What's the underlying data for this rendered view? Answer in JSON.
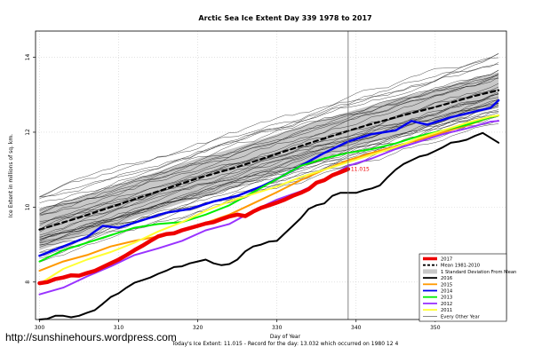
{
  "chart_data": {
    "type": "line",
    "title": "Arctic Sea Ice Extent Day 339 1978 to 2017",
    "xlabel": "Day of Year",
    "ylabel": "Ice Extent in millions of sq. km.",
    "xlim": [
      299.5,
      359
    ],
    "ylim": [
      7,
      14.7
    ],
    "x_ticks": [
      300,
      310,
      320,
      330,
      340,
      350
    ],
    "y_ticks": [
      8,
      10,
      12,
      14
    ],
    "grid": true,
    "vline_day": 339,
    "legend_position": "bottom-right",
    "annotation": "11.015",
    "footer": "Today's Ice Extent: 11.015  - Record for the day: 13.032 which occurred on 1980 12 4",
    "watermark": "http://sunshinehours.wordpress.com",
    "band": {
      "name": "1 Standard Deviation From Mean",
      "color": "#c8c8c8",
      "x": [
        300,
        305,
        310,
        315,
        320,
        325,
        330,
        335,
        340,
        345,
        350,
        355,
        358
      ],
      "upper": [
        9.95,
        10.25,
        10.6,
        10.95,
        11.3,
        11.6,
        11.95,
        12.3,
        12.6,
        12.9,
        13.15,
        13.45,
        13.6
      ],
      "lower": [
        8.85,
        9.2,
        9.55,
        9.9,
        10.25,
        10.55,
        10.9,
        11.25,
        11.6,
        11.9,
        12.2,
        12.5,
        12.65
      ]
    },
    "series": [
      {
        "name": "2017",
        "color": "#ee0000",
        "width": 4.5,
        "x": [
          300,
          301,
          302,
          303,
          304,
          305,
          306,
          307,
          308,
          309,
          310,
          311,
          312,
          313,
          314,
          315,
          316,
          317,
          318,
          319,
          320,
          321,
          322,
          323,
          324,
          325,
          326,
          327,
          328,
          329,
          330,
          331,
          332,
          333,
          334,
          335,
          336,
          337,
          338,
          339
        ],
        "values": [
          7.97,
          8.0,
          8.08,
          8.12,
          8.18,
          8.17,
          8.24,
          8.3,
          8.4,
          8.5,
          8.6,
          8.72,
          8.85,
          8.97,
          9.1,
          9.22,
          9.28,
          9.3,
          9.38,
          9.44,
          9.5,
          9.56,
          9.6,
          9.68,
          9.75,
          9.8,
          9.76,
          9.88,
          9.98,
          10.05,
          10.12,
          10.2,
          10.3,
          10.38,
          10.48,
          10.65,
          10.72,
          10.85,
          10.93,
          11.015
        ]
      },
      {
        "name": "Mean 1981-2010",
        "color": "#000000",
        "width": 2.2,
        "dash": "5,4",
        "x": [
          300,
          305,
          310,
          315,
          320,
          325,
          330,
          335,
          340,
          345,
          350,
          355,
          358
        ],
        "values": [
          9.4,
          9.72,
          10.07,
          10.42,
          10.77,
          11.07,
          11.42,
          11.77,
          12.1,
          12.4,
          12.67,
          12.97,
          13.12
        ]
      },
      {
        "name": "2016",
        "color": "#000000",
        "width": 2,
        "x": [
          300,
          301,
          302,
          303,
          304,
          305,
          306,
          307,
          308,
          309,
          310,
          311,
          312,
          313,
          314,
          315,
          316,
          317,
          318,
          319,
          320,
          321,
          322,
          323,
          324,
          325,
          326,
          327,
          328,
          329,
          330,
          331,
          332,
          333,
          334,
          335,
          336,
          337,
          338,
          339,
          340,
          341,
          342,
          343,
          344,
          345,
          346,
          347,
          348,
          349,
          350,
          351,
          352,
          353,
          354,
          355,
          356,
          357,
          358
        ],
        "values": [
          7.0,
          7.02,
          7.1,
          7.1,
          7.06,
          7.1,
          7.18,
          7.25,
          7.42,
          7.6,
          7.7,
          7.85,
          7.98,
          8.05,
          8.12,
          8.22,
          8.3,
          8.4,
          8.42,
          8.5,
          8.55,
          8.6,
          8.5,
          8.45,
          8.48,
          8.6,
          8.82,
          8.95,
          9.0,
          9.08,
          9.1,
          9.3,
          9.5,
          9.7,
          9.95,
          10.05,
          10.1,
          10.3,
          10.38,
          10.38,
          10.38,
          10.45,
          10.5,
          10.58,
          10.8,
          11.0,
          11.15,
          11.25,
          11.35,
          11.4,
          11.5,
          11.6,
          11.72,
          11.75,
          11.8,
          11.9,
          11.98,
          11.85,
          11.72
        ]
      },
      {
        "name": "2015",
        "color": "#ff9900",
        "width": 2,
        "x": [
          300,
          303,
          306,
          309,
          312,
          315,
          318,
          321,
          324,
          327,
          330,
          333,
          336,
          339,
          342,
          345,
          348,
          351,
          354,
          357,
          358
        ],
        "values": [
          8.3,
          8.55,
          8.72,
          8.95,
          9.1,
          9.22,
          9.38,
          9.58,
          9.8,
          10.1,
          10.4,
          10.72,
          11.0,
          11.25,
          11.45,
          11.62,
          11.8,
          12.0,
          12.18,
          12.4,
          12.45
        ]
      },
      {
        "name": "2014",
        "color": "#0000ee",
        "width": 2.5,
        "x": [
          300,
          303,
          306,
          308,
          310,
          313,
          316,
          319,
          322,
          325,
          328,
          330,
          333,
          336,
          339,
          342,
          345,
          347,
          349,
          352,
          355,
          357,
          358
        ],
        "values": [
          8.7,
          8.95,
          9.2,
          9.5,
          9.45,
          9.65,
          9.85,
          9.95,
          10.15,
          10.3,
          10.55,
          10.75,
          11.1,
          11.45,
          11.75,
          11.95,
          12.05,
          12.3,
          12.2,
          12.4,
          12.55,
          12.65,
          12.85
        ]
      },
      {
        "name": "2013",
        "color": "#00ee00",
        "width": 2,
        "x": [
          300,
          303,
          306,
          309,
          312,
          315,
          318,
          321,
          324,
          327,
          330,
          333,
          336,
          339,
          342,
          345,
          348,
          351,
          354,
          357,
          358
        ],
        "values": [
          8.55,
          8.85,
          9.05,
          9.25,
          9.45,
          9.55,
          9.6,
          9.8,
          10.05,
          10.4,
          10.75,
          11.1,
          11.3,
          11.45,
          11.55,
          11.7,
          11.9,
          12.05,
          12.2,
          12.4,
          12.45
        ]
      },
      {
        "name": "2012",
        "color": "#9933ff",
        "width": 2,
        "x": [
          300,
          303,
          306,
          309,
          312,
          315,
          318,
          321,
          324,
          327,
          330,
          333,
          336,
          339,
          342,
          345,
          348,
          351,
          354,
          357,
          358
        ],
        "values": [
          7.67,
          7.85,
          8.15,
          8.42,
          8.72,
          8.9,
          9.1,
          9.38,
          9.55,
          9.9,
          10.2,
          10.42,
          10.72,
          11.1,
          11.3,
          11.55,
          11.75,
          11.95,
          12.1,
          12.28,
          12.3
        ]
      },
      {
        "name": "2011",
        "color": "#ffff33",
        "width": 2,
        "x": [
          300,
          303,
          306,
          309,
          312,
          315,
          318,
          321,
          324,
          327,
          330,
          333,
          336,
          339,
          342,
          345,
          348,
          351,
          354,
          357,
          358
        ],
        "values": [
          7.95,
          8.35,
          8.6,
          8.8,
          9.05,
          9.35,
          9.6,
          9.9,
          10.15,
          10.35,
          10.55,
          10.8,
          11.0,
          11.2,
          11.4,
          11.6,
          11.85,
          12.05,
          12.25,
          12.42,
          12.45
        ]
      },
      {
        "name": "Every Other Year",
        "color": "#111111",
        "width": 0.55
      }
    ]
  }
}
